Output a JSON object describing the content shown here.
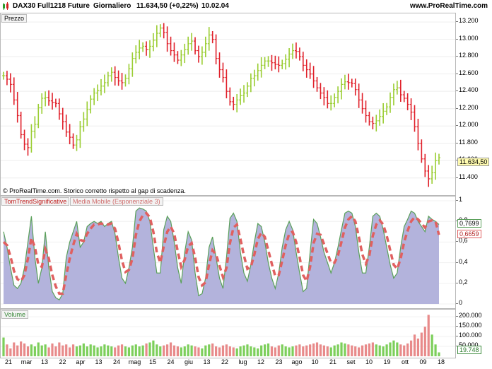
{
  "header": {
    "instrument": "DAX30 Full1218 Future",
    "period": "Giornaliero",
    "price_change": "11.634,50 (+0,22%)",
    "time": "10.02.04",
    "brand": "www.ProRealTime.com"
  },
  "price_panel": {
    "tag": "Prezzo",
    "footer_note": "© ProRealTime.com. Storico corretto rispetto al gap di scadenza.",
    "last_price_label": "11.634,50",
    "y_ticks": [
      "13.200",
      "13.000",
      "12.800",
      "12.600",
      "12.400",
      "12.200",
      "12.000",
      "11.800",
      "11.600",
      "11.400"
    ]
  },
  "indicator_panel": {
    "tag_1": "TomTrendSignificative",
    "tag_2": "Media Mobile (Esponenziale 3)",
    "value_1": "0,7699",
    "value_2": "0,6659",
    "y_ticks": [
      "1",
      "0,8",
      "0,6",
      "0,4",
      "0,2",
      "0"
    ]
  },
  "volume_panel": {
    "tag": "Volume",
    "last_volume_label": "19.748",
    "y_ticks": [
      "200.000",
      "150.000",
      "100.000",
      "50.000"
    ]
  },
  "x_axis": {
    "labels": [
      "21",
      "mar",
      "13",
      "22",
      "apr",
      "13",
      "24",
      "mag",
      "15",
      "24",
      "giu",
      "13",
      "22",
      "lug",
      "12",
      "23",
      "ago",
      "10",
      "21",
      "set",
      "10",
      "19",
      "ott",
      "09",
      "18"
    ]
  },
  "colors": {
    "up": "#9acd32",
    "down": "#e0202a",
    "area_fill": "#b3b3dc",
    "area_line": "#5aa05a",
    "ema": "#e06060",
    "vol_up": "#7ccf5a",
    "vol_down": "#e88a8a"
  },
  "chart_data": {
    "type": "candlestick",
    "ylim": [
      11300,
      13250
    ],
    "price": [
      12580,
      12540,
      12480,
      12300,
      12120,
      11900,
      11790,
      11750,
      11940,
      12020,
      12210,
      12320,
      12330,
      12290,
      12270,
      12260,
      12140,
      12050,
      11930,
      11870,
      11780,
      11840,
      11990,
      12080,
      12190,
      12310,
      12380,
      12410,
      12460,
      12500,
      12580,
      12620,
      12560,
      12520,
      12500,
      12550,
      12660,
      12780,
      12850,
      12900,
      12920,
      12880,
      12920,
      12990,
      13070,
      13130,
      13080,
      12950,
      12870,
      12820,
      12760,
      12820,
      12880,
      12950,
      12980,
      12870,
      12800,
      12850,
      12950,
      13050,
      13000,
      12780,
      12650,
      12560,
      12400,
      12280,
      12250,
      12300,
      12350,
      12380,
      12460,
      12550,
      12580,
      12640,
      12700,
      12750,
      12750,
      12730,
      12710,
      12700,
      12720,
      12770,
      12830,
      12870,
      12860,
      12800,
      12700,
      12650,
      12600,
      12520,
      12440,
      12380,
      12330,
      12260,
      12260,
      12330,
      12400,
      12480,
      12510,
      12500,
      12490,
      12420,
      12300,
      12200,
      12120,
      12050,
      12030,
      12060,
      12110,
      12170,
      12220,
      12330,
      12420,
      12440,
      12360,
      12320,
      12250,
      12160,
      11990,
      11800,
      11620,
      11480,
      11390,
      11460,
      11600,
      11634
    ],
    "indicator": {
      "series": [
        {
          "name": "TomTrendSignificative",
          "values": [
            0.7,
            0.55,
            0.35,
            0.18,
            0.15,
            0.2,
            0.35,
            0.6,
            0.85,
            0.45,
            0.2,
            0.35,
            0.7,
            0.35,
            0.12,
            0.06,
            0.04,
            0.1,
            0.45,
            0.6,
            0.7,
            0.8,
            0.55,
            0.6,
            0.75,
            0.78,
            0.8,
            0.78,
            0.8,
            0.75,
            0.78,
            0.8,
            0.68,
            0.45,
            0.25,
            0.2,
            0.35,
            0.55,
            0.9,
            0.93,
            0.92,
            0.9,
            0.8,
            0.55,
            0.3,
            0.3,
            0.72,
            0.85,
            0.8,
            0.6,
            0.35,
            0.2,
            0.5,
            0.7,
            0.62,
            0.3,
            0.08,
            0.1,
            0.25,
            0.55,
            0.65,
            0.45,
            0.25,
            0.15,
            0.45,
            0.83,
            0.88,
            0.8,
            0.5,
            0.3,
            0.22,
            0.38,
            0.6,
            0.78,
            0.75,
            0.6,
            0.4,
            0.25,
            0.15,
            0.3,
            0.55,
            0.72,
            0.8,
            0.72,
            0.5,
            0.3,
            0.12,
            0.15,
            0.5,
            0.82,
            0.78,
            0.65,
            0.5,
            0.4,
            0.3,
            0.4,
            0.55,
            0.72,
            0.88,
            0.9,
            0.88,
            0.75,
            0.5,
            0.3,
            0.3,
            0.55,
            0.85,
            0.88,
            0.85,
            0.72,
            0.55,
            0.38,
            0.25,
            0.3,
            0.55,
            0.75,
            0.82,
            0.9,
            0.88,
            0.8,
            0.75,
            0.7,
            0.85,
            0.82,
            0.8,
            0.77
          ]
        },
        {
          "name": "Media Mobile (Esponenziale 3)",
          "values": [
            0.6,
            0.57,
            0.46,
            0.32,
            0.24,
            0.22,
            0.28,
            0.44,
            0.64,
            0.55,
            0.38,
            0.36,
            0.53,
            0.44,
            0.28,
            0.17,
            0.1,
            0.1,
            0.28,
            0.44,
            0.57,
            0.68,
            0.62,
            0.61,
            0.68,
            0.73,
            0.77,
            0.77,
            0.78,
            0.77,
            0.77,
            0.78,
            0.73,
            0.59,
            0.42,
            0.31,
            0.33,
            0.44,
            0.67,
            0.8,
            0.86,
            0.88,
            0.84,
            0.7,
            0.5,
            0.4,
            0.56,
            0.7,
            0.75,
            0.68,
            0.51,
            0.36,
            0.43,
            0.56,
            0.59,
            0.45,
            0.26,
            0.18,
            0.21,
            0.38,
            0.52,
            0.48,
            0.37,
            0.26,
            0.35,
            0.59,
            0.74,
            0.77,
            0.63,
            0.47,
            0.34,
            0.36,
            0.48,
            0.63,
            0.69,
            0.65,
            0.52,
            0.39,
            0.27,
            0.28,
            0.42,
            0.57,
            0.68,
            0.7,
            0.6,
            0.45,
            0.28,
            0.22,
            0.36,
            0.59,
            0.68,
            0.67,
            0.58,
            0.49,
            0.4,
            0.4,
            0.47,
            0.6,
            0.74,
            0.82,
            0.85,
            0.8,
            0.65,
            0.48,
            0.39,
            0.47,
            0.66,
            0.77,
            0.81,
            0.77,
            0.66,
            0.52,
            0.38,
            0.34,
            0.44,
            0.6,
            0.71,
            0.8,
            0.84,
            0.82,
            0.78,
            0.74,
            0.8,
            0.81,
            0.8,
            0.67
          ]
        }
      ]
    },
    "volume": [
      95000,
      60000,
      40000,
      70000,
      55000,
      75000,
      65000,
      50000,
      60000,
      50000,
      70000,
      55000,
      60000,
      45000,
      65000,
      50000,
      70000,
      55000,
      60000,
      45000,
      60000,
      50000,
      55000,
      65000,
      50000,
      60000,
      55000,
      45000,
      50000,
      60000,
      55000,
      50000,
      45000,
      55000,
      60000,
      50000,
      45000,
      55000,
      60000,
      50000,
      55000,
      65000,
      70000,
      80000,
      60000,
      50000,
      55000,
      60000,
      70000,
      55000,
      50000,
      45000,
      50000,
      60000,
      55000,
      50000,
      45000,
      40000,
      55000,
      60000,
      65000,
      50000,
      45000,
      55000,
      60000,
      50000,
      45000,
      40000,
      50000,
      55000,
      60000,
      50000,
      45000,
      40000,
      55000,
      60000,
      65000,
      50000,
      45000,
      55000,
      60000,
      50000,
      45000,
      50000,
      55000,
      60000,
      50000,
      55000,
      60000,
      65000,
      70000,
      60000,
      55000,
      50000,
      45000,
      55000,
      60000,
      70000,
      65000,
      60000,
      55000,
      50000,
      45000,
      55000,
      60000,
      65000,
      70000,
      60000,
      55000,
      50000,
      60000,
      70000,
      80000,
      70000,
      60000,
      55000,
      65000,
      80000,
      110000,
      90000,
      120000,
      150000,
      210000,
      110000,
      60000,
      19748
    ]
  }
}
